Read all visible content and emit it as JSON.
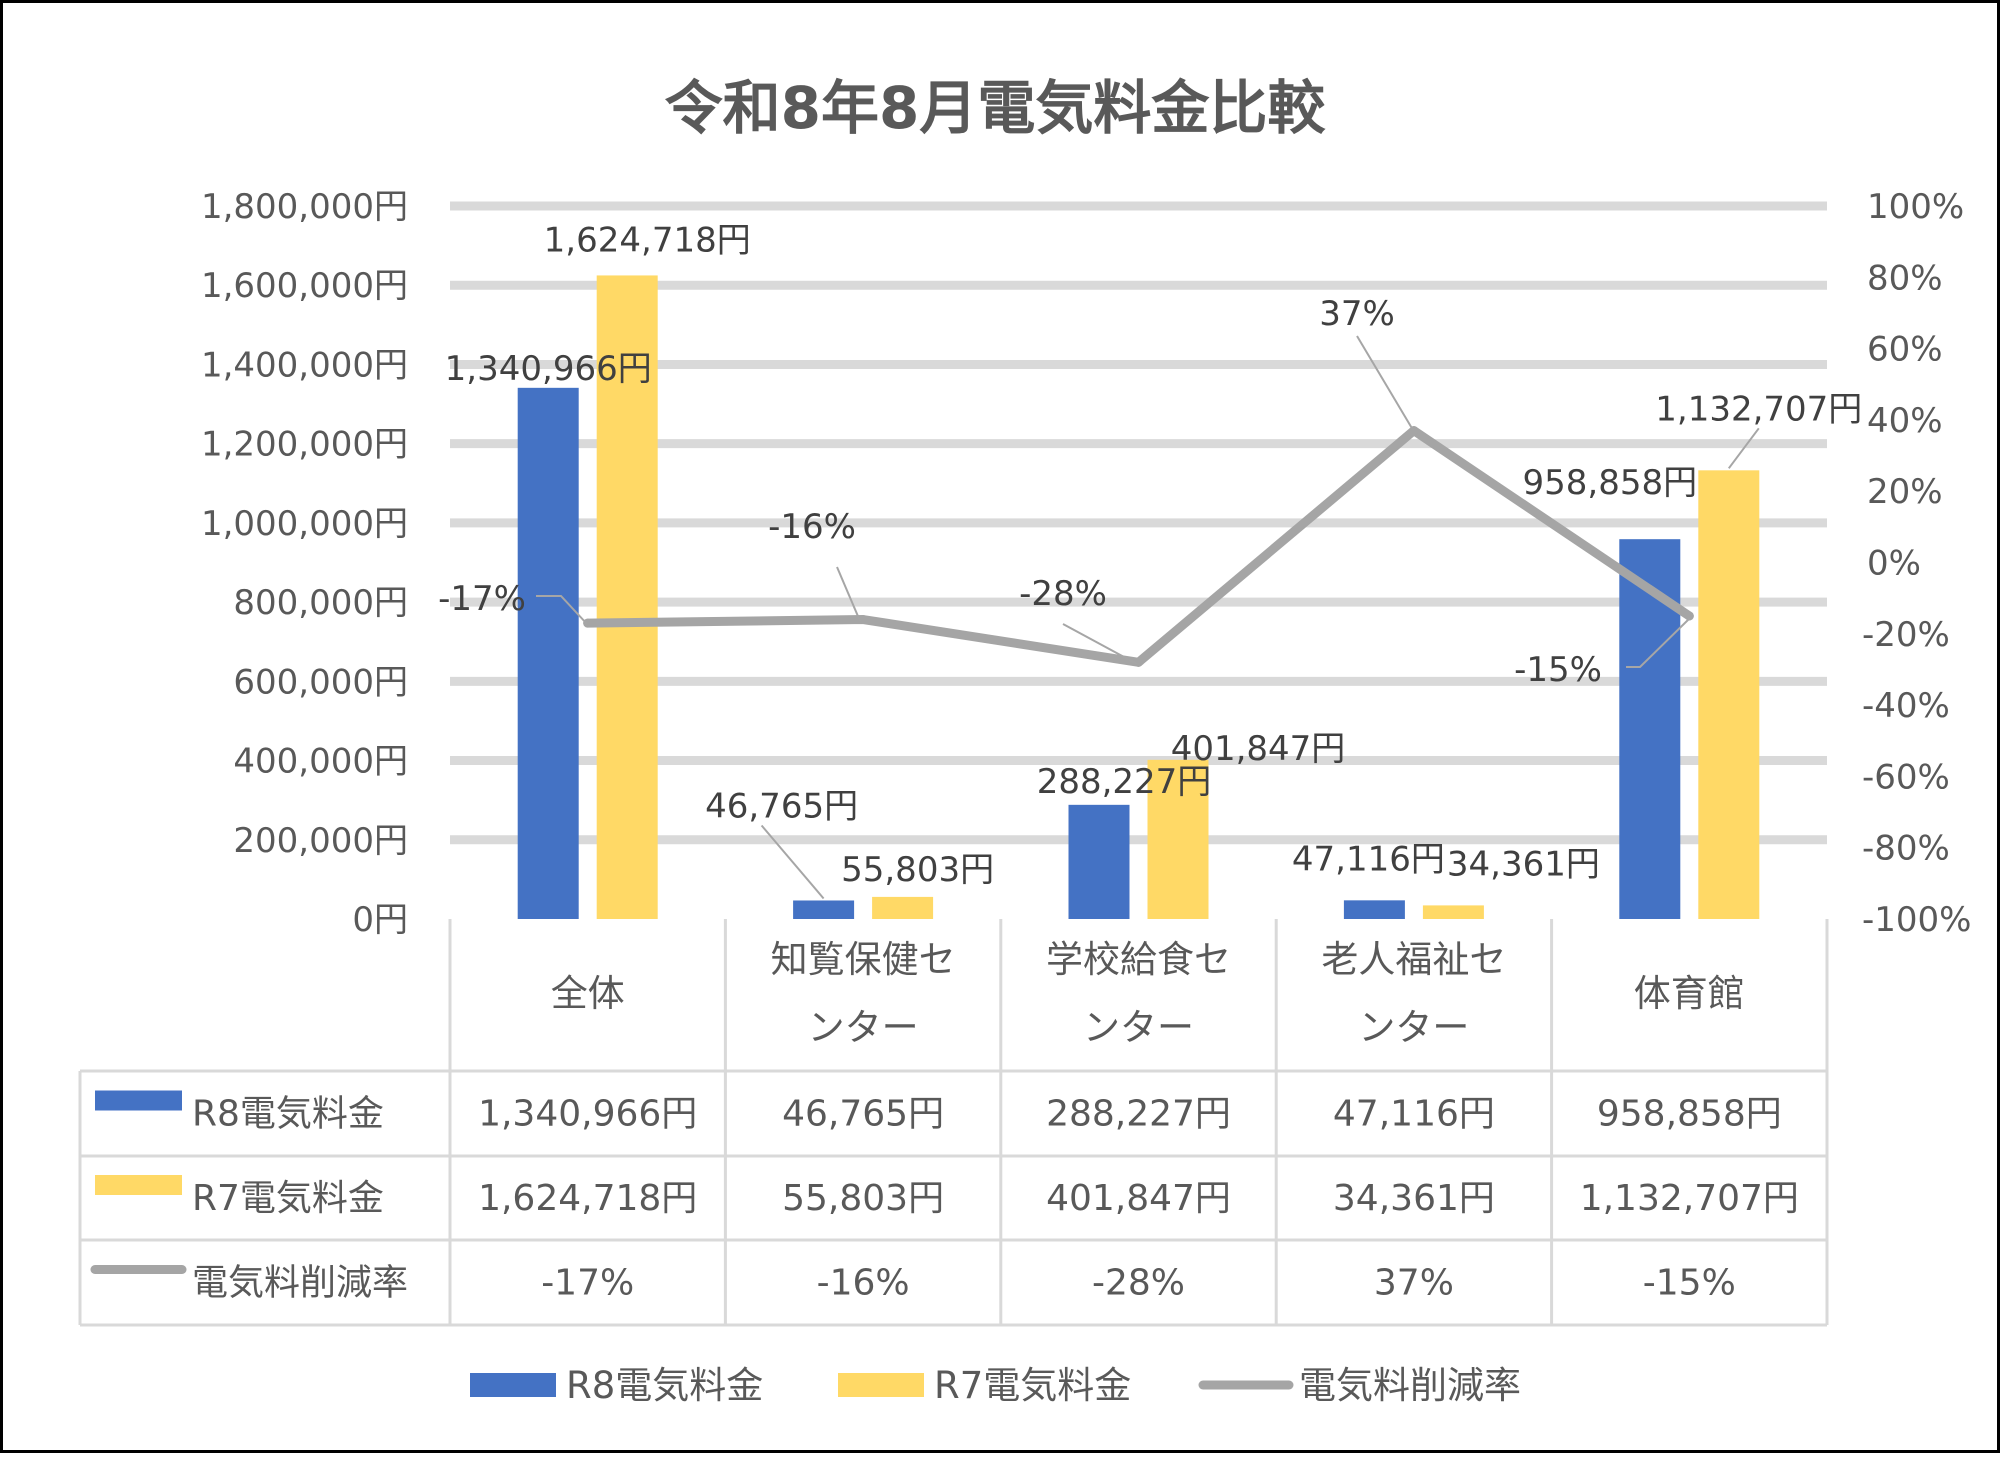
{
  "chart_data": {
    "type": "bar",
    "title": "令和8年8月電気料金比較",
    "categories": [
      {
        "lines": [
          "全体"
        ]
      },
      {
        "lines": [
          "知覧保健セ",
          "ンター"
        ]
      },
      {
        "lines": [
          "学校給食セ",
          "ンター"
        ]
      },
      {
        "lines": [
          "老人福祉セ",
          "ンター"
        ]
      },
      {
        "lines": [
          "体育館"
        ]
      }
    ],
    "y_left": {
      "ylim": [
        0,
        1800000
      ],
      "ticks": [
        0,
        200000,
        400000,
        600000,
        800000,
        1000000,
        1200000,
        1400000,
        1600000,
        1800000
      ],
      "tick_labels": [
        "0円",
        "200,000円",
        "400,000円",
        "600,000円",
        "800,000円",
        "1,000,000円",
        "1,200,000円",
        "1,400,000円",
        "1,600,000円",
        "1,800,000円"
      ]
    },
    "y_right": {
      "ylim": [
        -100,
        100
      ],
      "ticks": [
        -100,
        -80,
        -60,
        -40,
        -20,
        0,
        20,
        40,
        60,
        80,
        100
      ],
      "tick_labels": [
        "-100%",
        "-80%",
        "-60%",
        "-40%",
        "-20%",
        "0%",
        "20%",
        "40%",
        "60%",
        "80%",
        "100%"
      ]
    },
    "grid": true,
    "legend_position": "bottom",
    "data_table": true,
    "series": [
      {
        "name": "R8電気料金",
        "type": "bar",
        "axis": "left",
        "color": "#4472c4",
        "values": [
          1340966,
          46765,
          288227,
          47116,
          958858
        ],
        "labels": [
          "1,340,966円",
          "46,765円",
          "288,227円",
          "47,116円",
          "958,858円"
        ]
      },
      {
        "name": "R7電気料金",
        "type": "bar",
        "axis": "left",
        "color": "#ffd966",
        "values": [
          1624718,
          55803,
          401847,
          34361,
          1132707
        ],
        "labels": [
          "1,624,718円",
          "55,803円",
          "401,847円",
          "34,361円",
          "1,132,707円"
        ]
      },
      {
        "name": "電気料削減率",
        "type": "line",
        "axis": "right",
        "color": "#a5a5a5",
        "values": [
          -17,
          -16,
          -28,
          37,
          -15
        ],
        "labels": [
          "-17%",
          "-16%",
          "-28%",
          "37%",
          "-15%"
        ]
      }
    ]
  }
}
